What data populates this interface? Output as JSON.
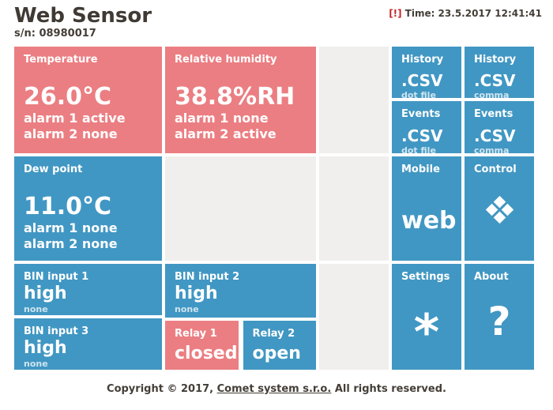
{
  "header": {
    "title": "Web Sensor",
    "serial": "s/n: 08980017",
    "alert_mark": "[!]",
    "time": "Time: 23.5.2017 12:41:41"
  },
  "tiles": {
    "temperature": {
      "title": "Temperature",
      "value": "26.0°C",
      "alarm1": "alarm 1 active",
      "alarm2": "alarm 2 none"
    },
    "humidity": {
      "title": "Relative humidity",
      "value": "38.8%RH",
      "alarm1": "alarm 1 none",
      "alarm2": "alarm 2 active"
    },
    "dew_point": {
      "title": "Dew point",
      "value": "11.0°C",
      "alarm1": "alarm 1 none",
      "alarm2": "alarm 2 none"
    },
    "bin_input_1": {
      "title": "BIN input 1",
      "value": "high",
      "sub": "none"
    },
    "bin_input_2": {
      "title": "BIN input 2",
      "value": "high",
      "sub": "none"
    },
    "bin_input_3": {
      "title": "BIN input 3",
      "value": "high",
      "sub": "none"
    },
    "relay_1": {
      "title": "Relay 1",
      "value": "closed"
    },
    "relay_2": {
      "title": "Relay 2",
      "value": "open"
    },
    "history_dot": {
      "title": "History",
      "value": ".CSV",
      "sub": "dot file"
    },
    "history_comma": {
      "title": "History",
      "value": ".CSV",
      "sub": "comma file"
    },
    "events_dot": {
      "title": "Events",
      "value": ".CSV",
      "sub": "dot file"
    },
    "events_comma": {
      "title": "Events",
      "value": ".CSV",
      "sub": "comma file"
    },
    "mobile": {
      "title": "Mobile",
      "value": "web"
    },
    "control": {
      "title": "Control",
      "icon": "four-diamonds"
    },
    "settings": {
      "title": "Settings",
      "icon": "*"
    },
    "about": {
      "title": "About",
      "icon": "?"
    }
  },
  "footer": {
    "prefix": "Copyright © 2017, ",
    "link": "Comet system s.r.o.",
    "suffix": " All rights reserved."
  },
  "colors": {
    "tile_alarm_active": "#EB7E82",
    "tile_normal": "#4197C3",
    "tile_empty": "#F0EFED",
    "header_text": "#443E37",
    "alert_red": "#C3272B"
  }
}
